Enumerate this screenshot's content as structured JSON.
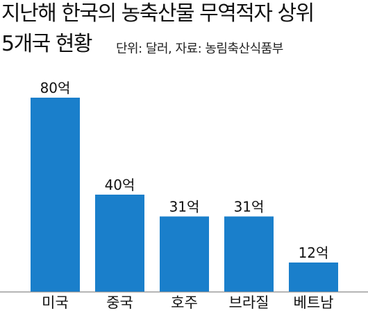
{
  "chart_data": {
    "type": "bar",
    "title": "지난해 한국의 농축산물 무역적자 상위",
    "title_line2": "5개국 현황",
    "subtitle": "단위: 달러, 자료: 농림축산식품부",
    "categories": [
      "미국",
      "중국",
      "호주",
      "브라질",
      "베트남"
    ],
    "values": [
      80,
      40,
      31,
      31,
      12
    ],
    "data_labels": [
      "80억",
      "40억",
      "31억",
      "31억",
      "12억"
    ],
    "value_unit": "억 달러",
    "ylim": [
      0,
      88
    ],
    "grid": false,
    "bar_color": "#1a7fcb",
    "baseline_color": "#9a9a9a"
  }
}
